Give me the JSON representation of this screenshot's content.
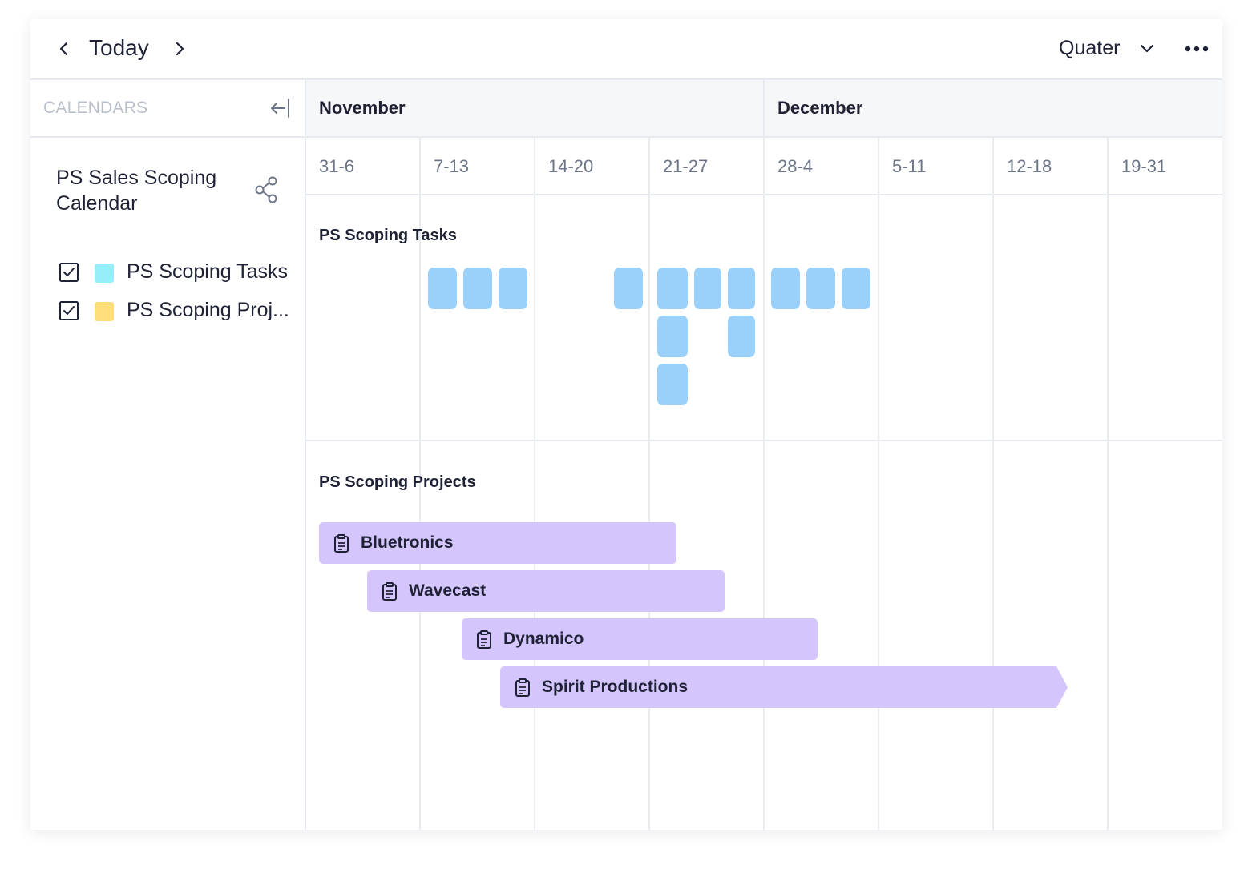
{
  "toolbar": {
    "today_label": "Today",
    "view_label": "Quater",
    "prev_icon": "chevron-left-icon",
    "next_icon": "chevron-right-icon",
    "more_icon": "more-horizontal-icon"
  },
  "sidebar": {
    "header": "CALENDARS",
    "calendar_name": "PS Sales Scoping Calendar",
    "calendars": [
      {
        "label": "PS Scoping Tasks",
        "color": "#96eef8",
        "checked": true
      },
      {
        "label": "PS Scoping Proj...",
        "color": "#fedd7a",
        "checked": true
      }
    ]
  },
  "timeline": {
    "months": [
      "November",
      "December"
    ],
    "weeks": [
      "31-6",
      "7-13",
      "14-20",
      "21-27",
      "28-4",
      "5-11",
      "12-18",
      "19-31"
    ]
  },
  "sections": {
    "tasks_title": "PS Scoping Tasks",
    "projects_title": "PS Scoping Projects"
  },
  "projects": [
    {
      "name": "Bluetronics"
    },
    {
      "name": "Wavecast"
    },
    {
      "name": "Dynamico"
    },
    {
      "name": "Spirit Productions"
    }
  ],
  "colors": {
    "task_bar": "#99d1fb",
    "project_bar": "#d4c5fc",
    "grid_line": "#e6e9ef"
  }
}
